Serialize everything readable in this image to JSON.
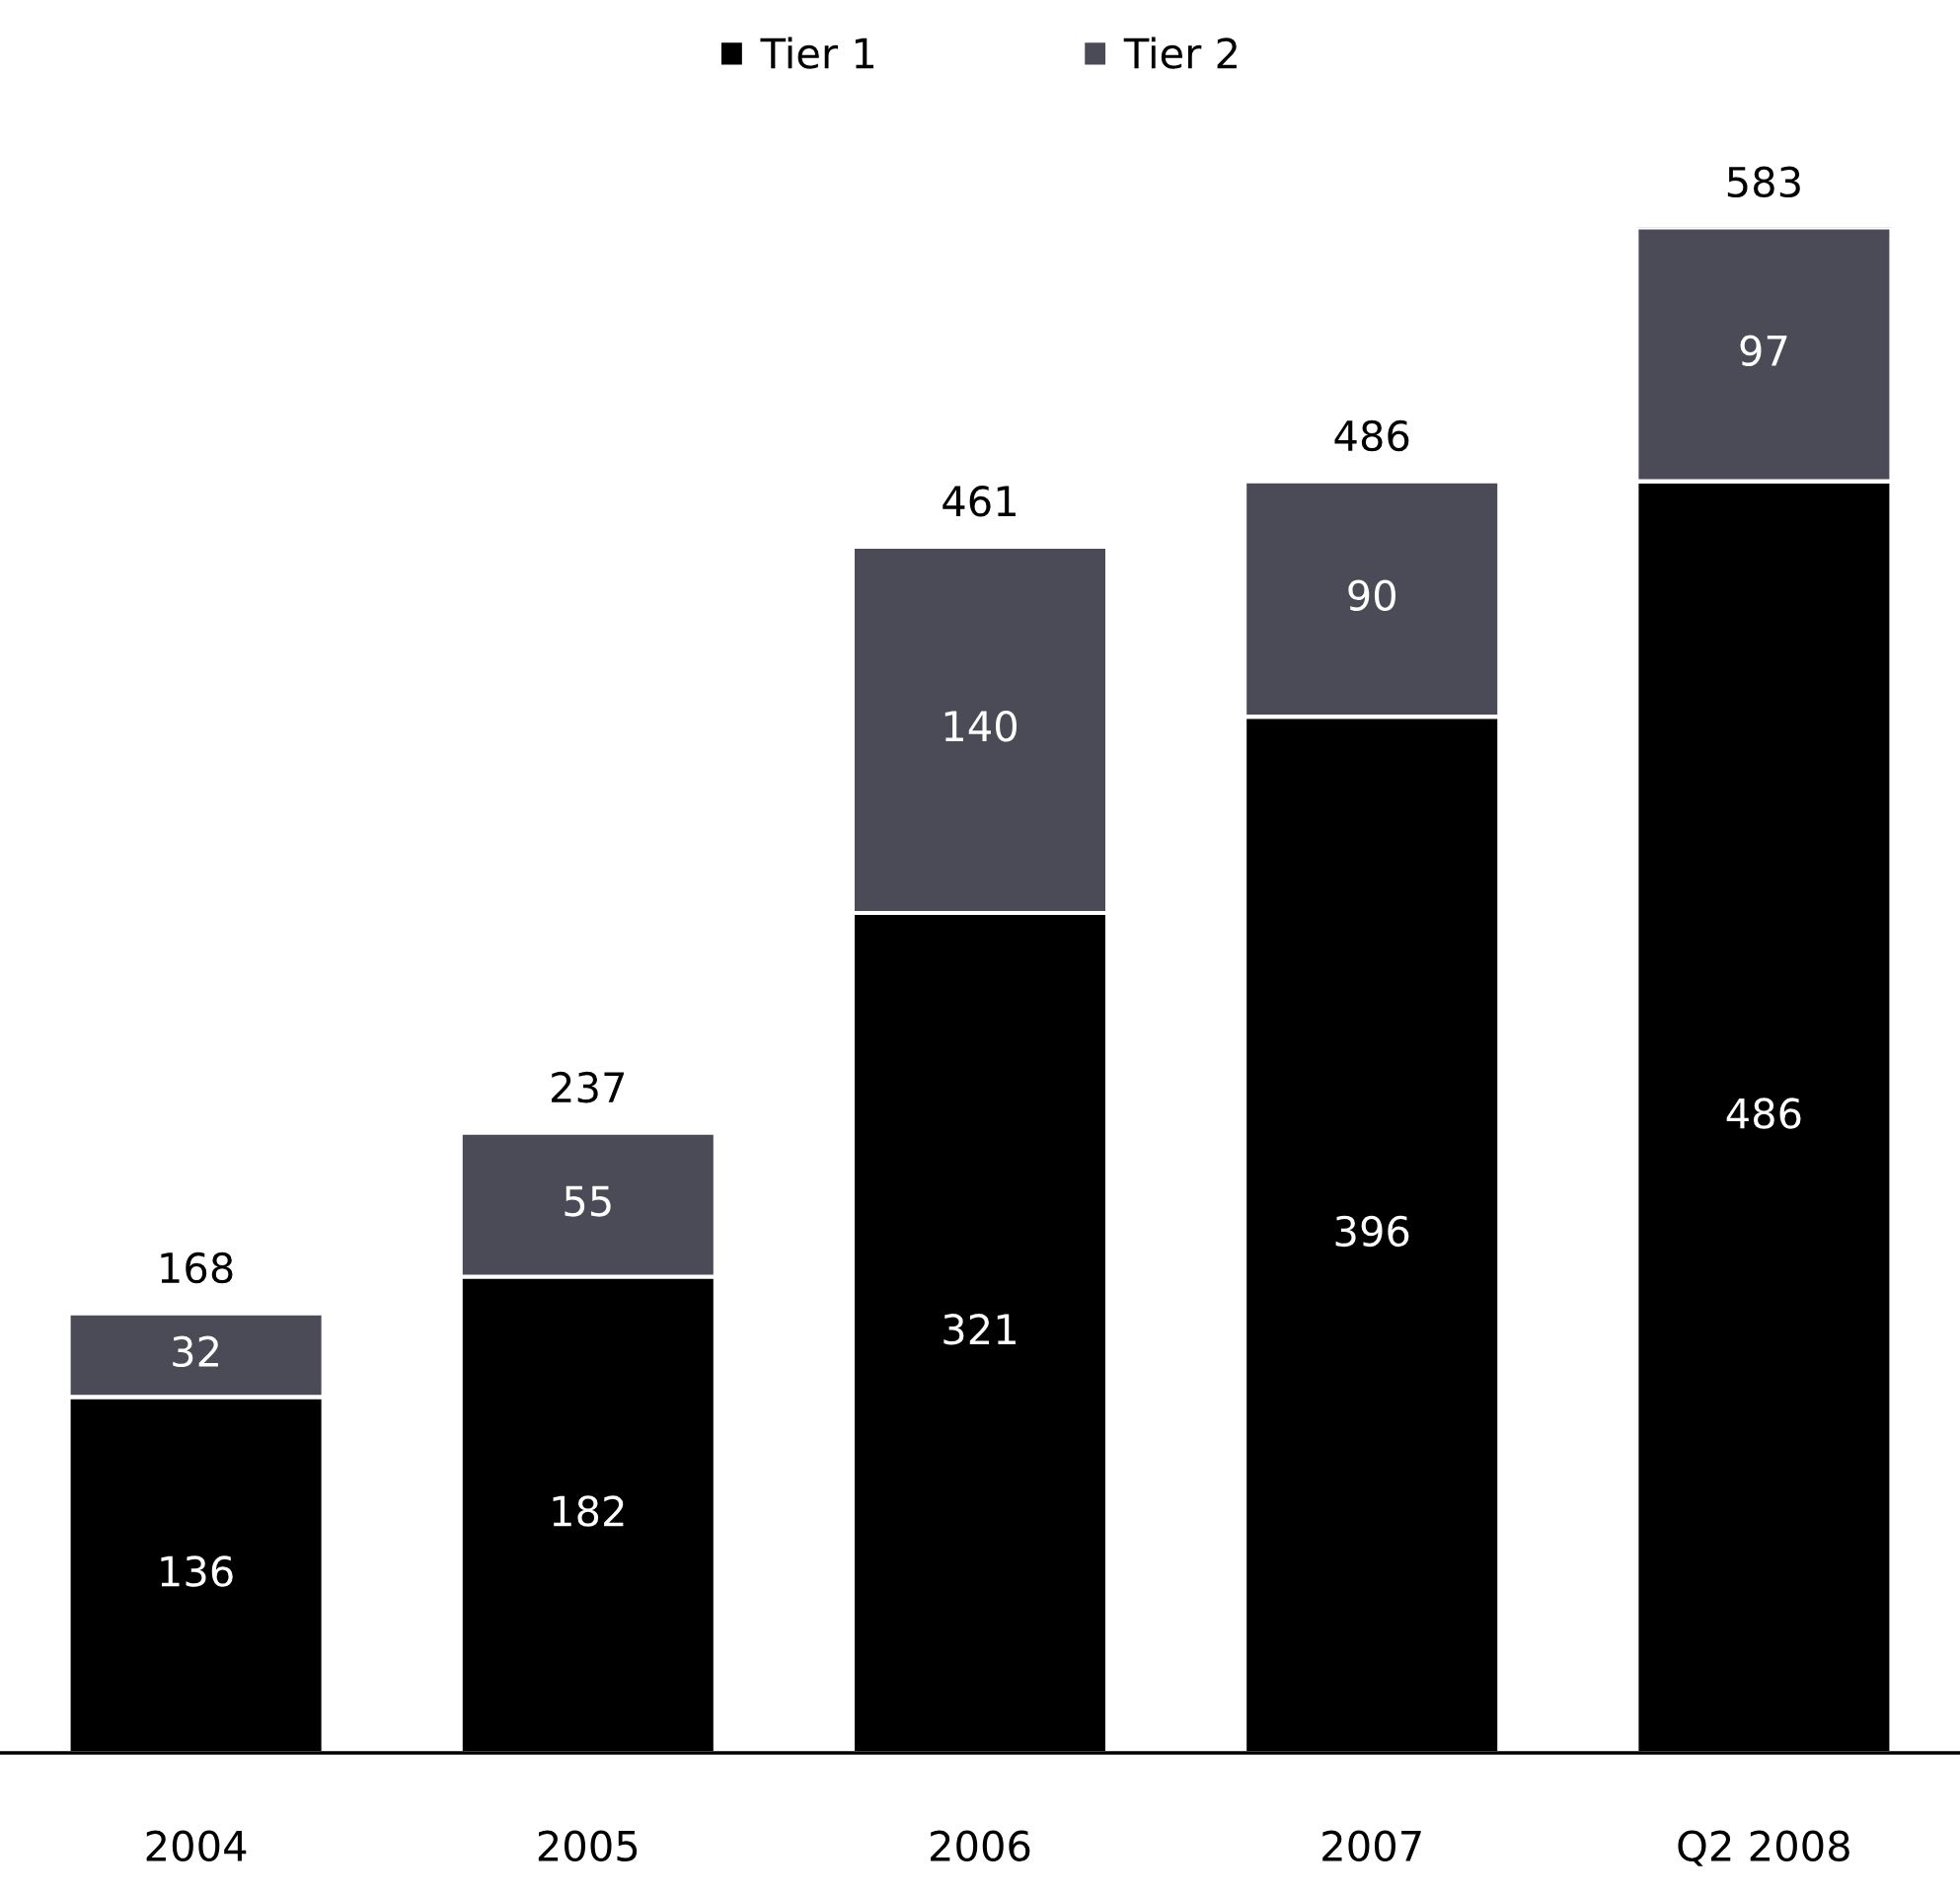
{
  "chart_data": {
    "type": "bar",
    "stacked": true,
    "categories": [
      "2004",
      "2005",
      "2006",
      "2007",
      "Q2 2008"
    ],
    "series": [
      {
        "name": "Tier 1",
        "color": "#000000",
        "values": [
          136,
          182,
          321,
          396,
          486
        ]
      },
      {
        "name": "Tier 2",
        "color": "#4b4b57",
        "values": [
          32,
          55,
          140,
          90,
          97
        ]
      }
    ],
    "totals": [
      "168",
      "237",
      "461",
      "486",
      "583"
    ],
    "data_labels": true,
    "legend": "top",
    "grid": false
  }
}
